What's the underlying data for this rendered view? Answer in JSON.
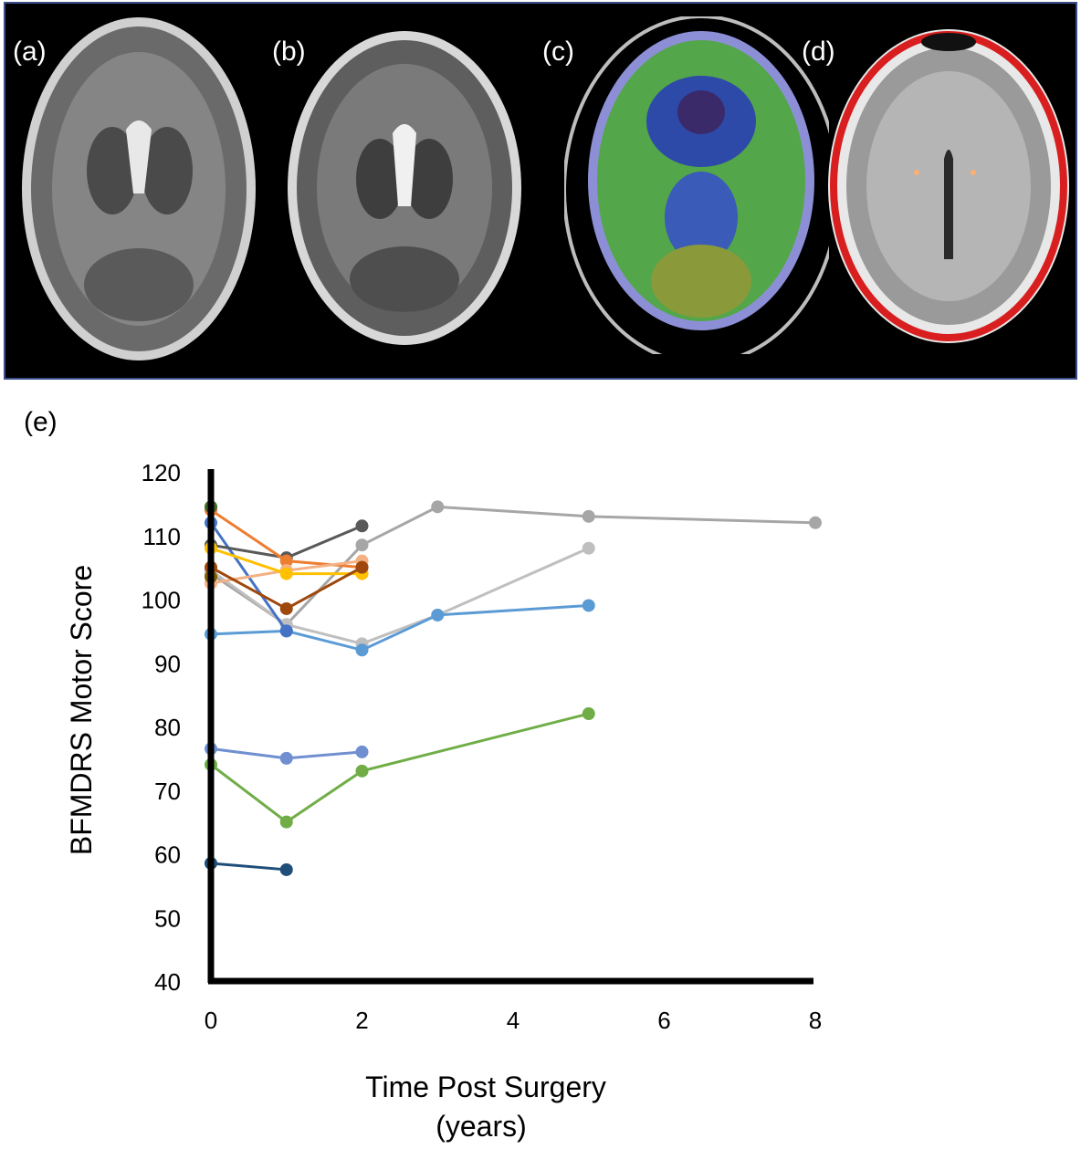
{
  "panels": [
    {
      "label": "(a)"
    },
    {
      "label": "(b)"
    },
    {
      "label": "(c)"
    },
    {
      "label": "(d)"
    }
  ],
  "chart_label": "(e)",
  "chart_data": {
    "type": "line",
    "xlabel": "Time Post Surgery",
    "xlabel_line2": "(years)",
    "ylabel": "BFMDRS Motor Score",
    "xlim": [
      0,
      8
    ],
    "ylim": [
      40,
      120
    ],
    "xticks": [
      0,
      2,
      4,
      6,
      8
    ],
    "yticks": [
      40,
      50,
      60,
      70,
      80,
      90,
      100,
      110,
      120
    ],
    "grid": false,
    "series": [
      {
        "color": "#a6a6a6",
        "points": [
          [
            0,
            104
          ],
          [
            1,
            96
          ],
          [
            2,
            108.5
          ],
          [
            3,
            114.5
          ],
          [
            5,
            113
          ],
          [
            8,
            112
          ]
        ]
      },
      {
        "color": "#bfbfbf",
        "points": [
          [
            0,
            104.5
          ],
          [
            1,
            96
          ],
          [
            2,
            93
          ],
          [
            3,
            97.5
          ],
          [
            5,
            108
          ]
        ]
      },
      {
        "color": "#5b9bd5",
        "points": [
          [
            0,
            94.5
          ],
          [
            1,
            95
          ],
          [
            2,
            92
          ],
          [
            3,
            97.5
          ],
          [
            5,
            99
          ]
        ]
      },
      {
        "color": "#70ad47",
        "points": [
          [
            0,
            74
          ],
          [
            1,
            65
          ],
          [
            2,
            73
          ],
          [
            5,
            82
          ]
        ]
      },
      {
        "color": "#6f8fd0",
        "points": [
          [
            0,
            76.5
          ],
          [
            1,
            75
          ],
          [
            2,
            76
          ]
        ]
      },
      {
        "color": "#1f4e79",
        "points": [
          [
            0,
            58.5
          ],
          [
            1,
            57.5
          ]
        ]
      },
      {
        "color": "#4472c4",
        "points": [
          [
            0,
            112
          ],
          [
            1,
            95
          ]
        ]
      },
      {
        "color": "#595959",
        "points": [
          [
            0,
            108.5
          ],
          [
            1,
            106.5
          ],
          [
            2,
            111.5
          ]
        ]
      },
      {
        "color": "#ed7d31",
        "points": [
          [
            0,
            114
          ],
          [
            1,
            106
          ],
          [
            2,
            105
          ]
        ]
      },
      {
        "color": "#f4b183",
        "points": [
          [
            0,
            102.5
          ],
          [
            1,
            104.5
          ],
          [
            2,
            106
          ]
        ]
      },
      {
        "color": "#ffc000",
        "points": [
          [
            0,
            108
          ],
          [
            1,
            104
          ],
          [
            2,
            104
          ]
        ]
      },
      {
        "color": "#9e480e",
        "points": [
          [
            0,
            105
          ],
          [
            1,
            98.5
          ],
          [
            2,
            105
          ]
        ]
      },
      {
        "color": "#7f6000",
        "points": [
          [
            0,
            103.5
          ]
        ]
      },
      {
        "color": "#43682b",
        "points": [
          [
            0,
            114.5
          ]
        ]
      }
    ]
  }
}
